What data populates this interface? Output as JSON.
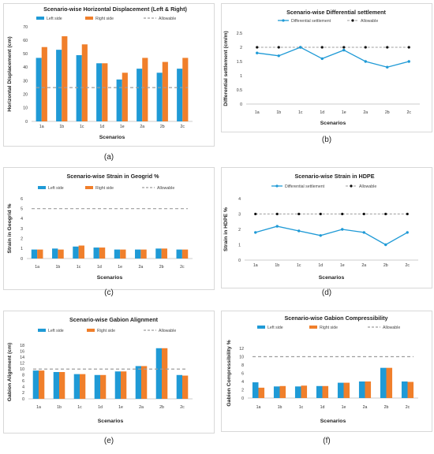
{
  "colors": {
    "left": "#1f9ad6",
    "right": "#f07f2b",
    "allowable": "#9e9e9e",
    "diff": "#1f9ad6",
    "diffAllow": "#111111"
  },
  "charts": [
    {
      "id": "a",
      "caption": "(a)",
      "title": "Scenario-wise Horizontal Displacement (Left & Right)",
      "xlabel": "Scenarios",
      "ylabel": "Horizontal Displacement (cm)",
      "type": "bar",
      "categories": [
        "1a",
        "1b",
        "1c",
        "1d",
        "1e",
        "2a",
        "2b",
        "2c"
      ],
      "series": [
        {
          "name": "Left side",
          "values": [
            47,
            53,
            49,
            43,
            31,
            39,
            36,
            39
          ]
        },
        {
          "name": "Right side",
          "values": [
            55,
            63,
            57,
            43,
            36,
            47,
            44,
            47
          ]
        }
      ],
      "allowable": {
        "name": "Allowable",
        "value": 25
      },
      "ylim": [
        0,
        70
      ],
      "yticks": [
        0,
        10,
        20,
        30,
        40,
        50,
        60,
        70
      ]
    },
    {
      "id": "b",
      "caption": "(b)",
      "title": "Scenario-wise Differential settlement",
      "xlabel": "Scenarios",
      "ylabel": "Differential settlement (cm/m)",
      "type": "line",
      "categories": [
        "1a",
        "1b",
        "1c",
        "1d",
        "1e",
        "2a",
        "2b",
        "2c"
      ],
      "series": [
        {
          "name": "Differential settlement",
          "values": [
            1.8,
            1.7,
            2.0,
            1.6,
            1.9,
            1.5,
            1.3,
            1.5
          ]
        }
      ],
      "allowable": {
        "name": "Allowable",
        "value": 2
      },
      "ylim": [
        0,
        2.5
      ],
      "yticks": [
        0,
        0.5,
        1,
        1.5,
        2,
        2.5
      ]
    },
    {
      "id": "c",
      "caption": "(c)",
      "title": "Scenario-wise Strain in Geogrid %",
      "xlabel": "Scenarios",
      "ylabel": "Strain in Geogrid %",
      "type": "bar",
      "categories": [
        "1a",
        "1b",
        "1c",
        "1d",
        "1e",
        "2a",
        "2b",
        "2c"
      ],
      "series": [
        {
          "name": "Left side",
          "values": [
            0.9,
            1.0,
            1.2,
            1.1,
            0.9,
            0.9,
            1.0,
            0.9
          ]
        },
        {
          "name": "Right side",
          "values": [
            0.9,
            0.9,
            1.3,
            1.1,
            0.9,
            0.9,
            1.0,
            0.9
          ]
        }
      ],
      "allowable": {
        "name": "Allowable",
        "value": 5
      },
      "ylim": [
        0,
        6
      ],
      "yticks": [
        0,
        1,
        2,
        3,
        4,
        5,
        6
      ]
    },
    {
      "id": "d",
      "caption": "(d)",
      "title": "Scenario-wise Strain in HDPE",
      "xlabel": "Scenarios",
      "ylabel": "Strain in HDPE %",
      "type": "line",
      "categories": [
        "1a",
        "1b",
        "1c",
        "1d",
        "1e",
        "2a",
        "2b",
        "2c"
      ],
      "series": [
        {
          "name": "Differential settlement",
          "values": [
            1.8,
            2.2,
            1.9,
            1.6,
            2.0,
            1.8,
            1.0,
            1.8
          ]
        }
      ],
      "allowable": {
        "name": "Allowable",
        "value": 3
      },
      "ylim": [
        0,
        4
      ],
      "yticks": [
        0,
        1,
        2,
        3,
        4
      ]
    },
    {
      "id": "e",
      "caption": "(e)",
      "title": "Scenario-wise Gabion Alignment",
      "xlabel": "Scenarios",
      "ylabel": "Gabion Alignment (cm)",
      "type": "bar",
      "categories": [
        "1a",
        "1b",
        "1c",
        "1d",
        "1e",
        "2a",
        "2b",
        "2c"
      ],
      "series": [
        {
          "name": "Left side",
          "values": [
            9.5,
            9,
            8.3,
            8,
            9.2,
            11,
            17,
            8
          ]
        },
        {
          "name": "Right side",
          "values": [
            9.5,
            9,
            8.3,
            8,
            9.2,
            11,
            17,
            7.8
          ]
        }
      ],
      "allowable": {
        "name": "Allowable",
        "value": 10
      },
      "ylim": [
        0,
        18
      ],
      "yticks": [
        0,
        2,
        4,
        6,
        8,
        10,
        12,
        14,
        16,
        18
      ]
    },
    {
      "id": "f",
      "caption": "(f)",
      "title": "Scenario-wise Gabion Compressibility",
      "xlabel": "Scenarios",
      "ylabel": "Gabion Compressibility %",
      "type": "bar",
      "categories": [
        "1a",
        "1b",
        "1c",
        "1d",
        "1e",
        "2a",
        "2b",
        "2c"
      ],
      "series": [
        {
          "name": "Left side",
          "values": [
            3.8,
            2.8,
            2.8,
            2.9,
            3.7,
            4.0,
            7.3,
            4.0
          ]
        },
        {
          "name": "Right side",
          "values": [
            2.5,
            2.9,
            3.0,
            2.9,
            3.7,
            4.0,
            7.3,
            3.9
          ]
        }
      ],
      "allowable": {
        "name": "Allowable",
        "value": 10
      },
      "ylim": [
        0,
        12
      ],
      "yticks": [
        0,
        2,
        4,
        6,
        8,
        10,
        12
      ]
    }
  ]
}
